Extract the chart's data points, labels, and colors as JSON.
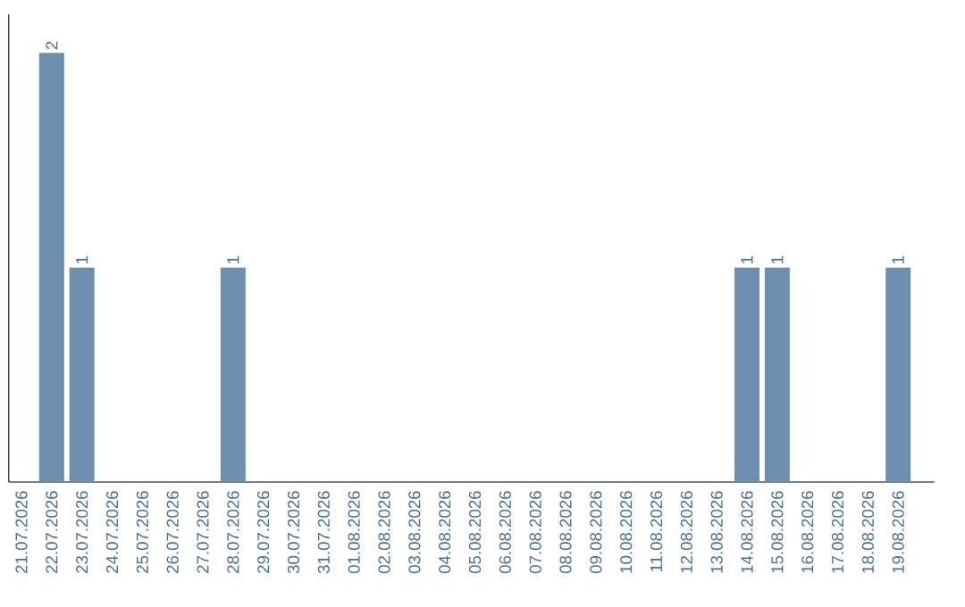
{
  "chart_data": {
    "type": "bar",
    "categories": [
      "21.07.2026",
      "22.07.2026",
      "23.07.2026",
      "24.07.2026",
      "25.07.2026",
      "26.07.2026",
      "27.07.2026",
      "28.07.2026",
      "29.07.2026",
      "30.07.2026",
      "31.07.2026",
      "01.08.2026",
      "02.08.2026",
      "03.08.2026",
      "04.08.2026",
      "05.08.2026",
      "06.08.2026",
      "07.08.2026",
      "08.08.2026",
      "09.08.2026",
      "10.08.2026",
      "11.08.2026",
      "12.08.2026",
      "13.08.2026",
      "14.08.2026",
      "15.08.2026",
      "16.08.2026",
      "17.08.2026",
      "18.08.2026",
      "19.08.2026"
    ],
    "values": [
      0,
      2,
      1,
      0,
      0,
      0,
      0,
      1,
      0,
      0,
      0,
      0,
      0,
      0,
      0,
      0,
      0,
      0,
      0,
      0,
      0,
      0,
      0,
      0,
      1,
      1,
      0,
      0,
      0,
      1
    ],
    "value_labels": [
      null,
      "2",
      "1",
      null,
      null,
      null,
      null,
      "1",
      null,
      null,
      null,
      null,
      null,
      null,
      null,
      null,
      null,
      null,
      null,
      null,
      null,
      null,
      null,
      null,
      "1",
      "1",
      null,
      null,
      null,
      "1"
    ],
    "color": "#6d8fad"
  }
}
